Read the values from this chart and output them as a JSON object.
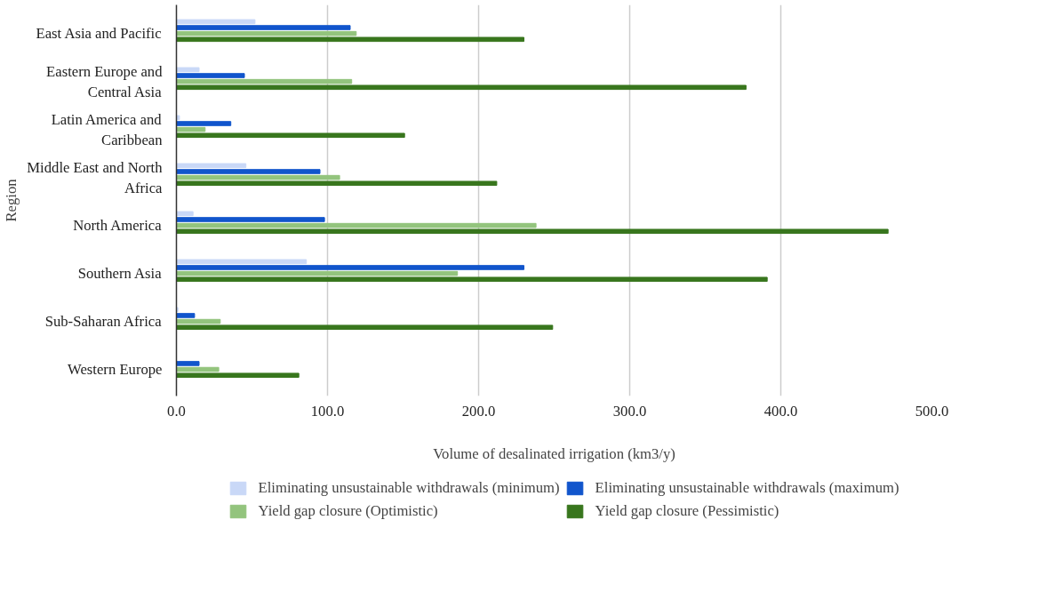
{
  "chart_data": {
    "type": "bar",
    "orientation": "horizontal",
    "xlabel": "Volume of desalinated irrigation (km3/y)",
    "ylabel": "Region",
    "categories": [
      "East Asia and Pacific",
      "Eastern Europe and Central Asia",
      "Latin America and Caribbean",
      "Middle East and North Africa",
      "North America",
      "Southern Asia",
      "Sub-Saharan Africa",
      "Western Europe"
    ],
    "series": [
      {
        "name": "Eliminating unsustainable withdrawals (minimum)",
        "color": "#c9d8f7",
        "values": [
          52,
          15,
          2,
          46,
          11,
          86,
          1,
          null
        ]
      },
      {
        "name": "Eliminating unsustainable withdrawals (maximum)",
        "color": "#1155cc",
        "values": [
          115,
          45,
          36,
          95,
          98,
          230,
          12,
          15
        ]
      },
      {
        "name": "Yield gap closure (Optimistic)",
        "color": "#93c47d",
        "values": [
          119,
          116,
          19,
          108,
          238,
          186,
          29,
          28
        ]
      },
      {
        "name": "Yield gap closure (Pessimistic)",
        "color": "#38761d",
        "values": [
          230,
          377,
          151,
          212,
          471,
          391,
          249,
          81
        ]
      }
    ],
    "xlim": [
      0,
      500
    ],
    "xticks": [
      {
        "value": 0,
        "label": "0.0"
      },
      {
        "value": 100,
        "label": "100.0"
      },
      {
        "value": 200,
        "label": "200.0"
      },
      {
        "value": 300,
        "label": "300.0"
      },
      {
        "value": 400,
        "label": "400.0"
      },
      {
        "value": 500,
        "label": "500.0"
      }
    ],
    "grid": "x",
    "legend": "bottom"
  }
}
